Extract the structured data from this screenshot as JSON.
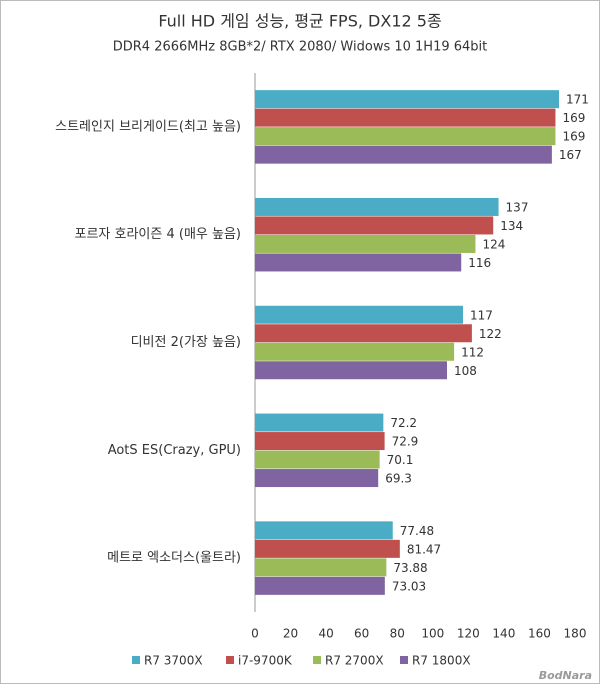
{
  "chart_data": {
    "type": "bar",
    "orientation": "horizontal",
    "title": "Full HD 게임 성능, 평균 FPS, DX12 5종",
    "subtitle": "DDR4 2666MHz 8GB*2/ RTX 2080/ Widows 10 1H19 64bit",
    "categories": [
      "스트레인지 브리게이드(최고 높음)",
      "포르자 호라이즌 4 (매우 높음)",
      "디비전 2(가장 높음)",
      "AotS ES(Crazy, GPU)",
      "메트로 엑소더스(울트라)"
    ],
    "series": [
      {
        "name": "R7 3700X",
        "color": "#4bacc6",
        "values": [
          171,
          137,
          117,
          72.2,
          77.48
        ]
      },
      {
        "name": "i7-9700K",
        "color": "#c0504d",
        "values": [
          169,
          134,
          122,
          72.9,
          81.47
        ]
      },
      {
        "name": "R7 2700X",
        "color": "#9bbb59",
        "values": [
          169,
          124,
          112,
          70.1,
          73.88
        ]
      },
      {
        "name": "R7 1800X",
        "color": "#8064a2",
        "values": [
          167,
          116,
          108,
          69.3,
          73.03
        ]
      }
    ],
    "xlim": [
      0,
      180
    ],
    "xticks": [
      0,
      20,
      40,
      60,
      80,
      100,
      120,
      140,
      160,
      180
    ],
    "grid": false,
    "legend": "bottom",
    "watermark": "BodNara"
  }
}
